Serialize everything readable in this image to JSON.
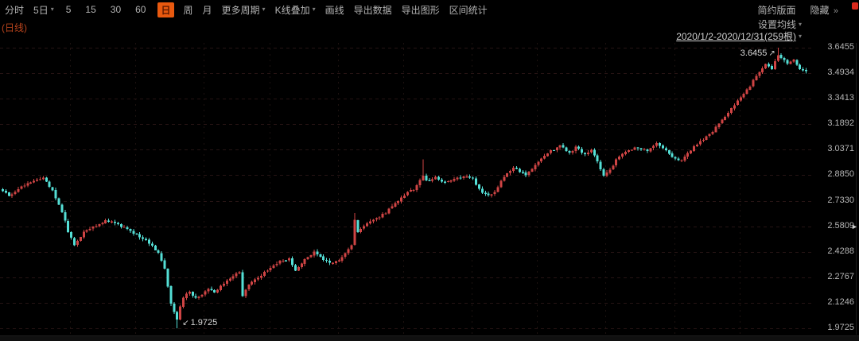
{
  "toolbar": {
    "tabs": {
      "minute": "分时",
      "five_day": "5日",
      "m5": "5",
      "m15": "15",
      "m30": "30",
      "m60": "60",
      "daily": "日",
      "weekly": "周",
      "monthly": "月"
    },
    "more_periods": "更多周期",
    "kline_overlay": "K线叠加",
    "draw_line": "画线",
    "export_data": "导出数据",
    "export_image": "导出图形",
    "range_stats": "区间统计",
    "simple_layout": "简约版面",
    "hide": "隐藏"
  },
  "header": {
    "chart_type_label": "(日线)",
    "ma_settings": "设置均线",
    "date_range": "2020/1/2-2020/12/31(259根)"
  },
  "icons": {
    "dropdown": "▾",
    "chevrons_right": "»",
    "arrow_up_right": "↗",
    "arrow_down_left": "↙",
    "panel_marker": "►"
  },
  "chart_data": {
    "type": "candlestick",
    "title": "日K线 2020/1/2-2020/12/31",
    "bars": 259,
    "y_axis_labels": [
      "3.6455",
      "3.4934",
      "3.3413",
      "3.1892",
      "3.0371",
      "2.8850",
      "2.7330",
      "2.5809",
      "2.4288",
      "2.2767",
      "2.1246",
      "1.9725"
    ],
    "y_max": 3.6455,
    "y_min": 1.9725,
    "max_annotation": "3.6455",
    "min_annotation": "1.9725",
    "max_bar": 249,
    "min_bar": 56,
    "price_marker": "2.5809",
    "up_color": "#cf4444",
    "down_color": "#54dfd6",
    "grid_color_h": "#261414",
    "grid_color_v": "#1c1210",
    "month_grid_bars": [
      22,
      43,
      65,
      86,
      108,
      129,
      151,
      172,
      194,
      216,
      237
    ],
    "wick_overrides": [
      [
        113,
        2.66
      ],
      [
        135,
        2.98
      ]
    ],
    "keypoints": [
      [
        0,
        2.79
      ],
      [
        2,
        2.76
      ],
      [
        5,
        2.8
      ],
      [
        8,
        2.84
      ],
      [
        11,
        2.86
      ],
      [
        13,
        2.87
      ],
      [
        16,
        2.79
      ],
      [
        19,
        2.67
      ],
      [
        21,
        2.55
      ],
      [
        23,
        2.47
      ],
      [
        26,
        2.55
      ],
      [
        29,
        2.58
      ],
      [
        33,
        2.61
      ],
      [
        36,
        2.6
      ],
      [
        39,
        2.57
      ],
      [
        42,
        2.54
      ],
      [
        45,
        2.51
      ],
      [
        48,
        2.46
      ],
      [
        50,
        2.42
      ],
      [
        52,
        2.33
      ],
      [
        54,
        2.12
      ],
      [
        56,
        2.02
      ],
      [
        57,
        2.1
      ],
      [
        58,
        2.16
      ],
      [
        60,
        2.19
      ],
      [
        62,
        2.15
      ],
      [
        64,
        2.17
      ],
      [
        66,
        2.21
      ],
      [
        68,
        2.19
      ],
      [
        71,
        2.24
      ],
      [
        74,
        2.28
      ],
      [
        76,
        2.31
      ],
      [
        77,
        2.17
      ],
      [
        78,
        2.21
      ],
      [
        80,
        2.25
      ],
      [
        83,
        2.29
      ],
      [
        86,
        2.33
      ],
      [
        89,
        2.37
      ],
      [
        92,
        2.39
      ],
      [
        94,
        2.31
      ],
      [
        95,
        2.34
      ],
      [
        98,
        2.4
      ],
      [
        100,
        2.43
      ],
      [
        103,
        2.38
      ],
      [
        106,
        2.36
      ],
      [
        108,
        2.38
      ],
      [
        110,
        2.42
      ],
      [
        112,
        2.47
      ],
      [
        113,
        2.62
      ],
      [
        114,
        2.54
      ],
      [
        117,
        2.6
      ],
      [
        120,
        2.63
      ],
      [
        123,
        2.66
      ],
      [
        126,
        2.72
      ],
      [
        129,
        2.77
      ],
      [
        132,
        2.8
      ],
      [
        135,
        2.88
      ],
      [
        136,
        2.85
      ],
      [
        139,
        2.87
      ],
      [
        142,
        2.84
      ],
      [
        145,
        2.86
      ],
      [
        148,
        2.88
      ],
      [
        151,
        2.86
      ],
      [
        154,
        2.78
      ],
      [
        156,
        2.76
      ],
      [
        158,
        2.79
      ],
      [
        161,
        2.88
      ],
      [
        164,
        2.93
      ],
      [
        166,
        2.91
      ],
      [
        168,
        2.88
      ],
      [
        171,
        2.95
      ],
      [
        174,
        3.0
      ],
      [
        177,
        3.04
      ],
      [
        179,
        3.06
      ],
      [
        182,
        3.02
      ],
      [
        184,
        3.05
      ],
      [
        187,
        3.01
      ],
      [
        189,
        3.04
      ],
      [
        191,
        2.97
      ],
      [
        193,
        2.88
      ],
      [
        195,
        2.92
      ],
      [
        198,
        3.0
      ],
      [
        201,
        3.03
      ],
      [
        204,
        3.05
      ],
      [
        207,
        3.03
      ],
      [
        210,
        3.08
      ],
      [
        212,
        3.05
      ],
      [
        215,
        3.0
      ],
      [
        217,
        2.97
      ],
      [
        219,
        2.99
      ],
      [
        222,
        3.06
      ],
      [
        225,
        3.1
      ],
      [
        228,
        3.15
      ],
      [
        231,
        3.21
      ],
      [
        234,
        3.28
      ],
      [
        237,
        3.35
      ],
      [
        240,
        3.42
      ],
      [
        243,
        3.5
      ],
      [
        245,
        3.55
      ],
      [
        247,
        3.52
      ],
      [
        249,
        3.6
      ],
      [
        250,
        3.58
      ],
      [
        252,
        3.55
      ],
      [
        254,
        3.57
      ],
      [
        256,
        3.52
      ],
      [
        258,
        3.5
      ]
    ]
  }
}
